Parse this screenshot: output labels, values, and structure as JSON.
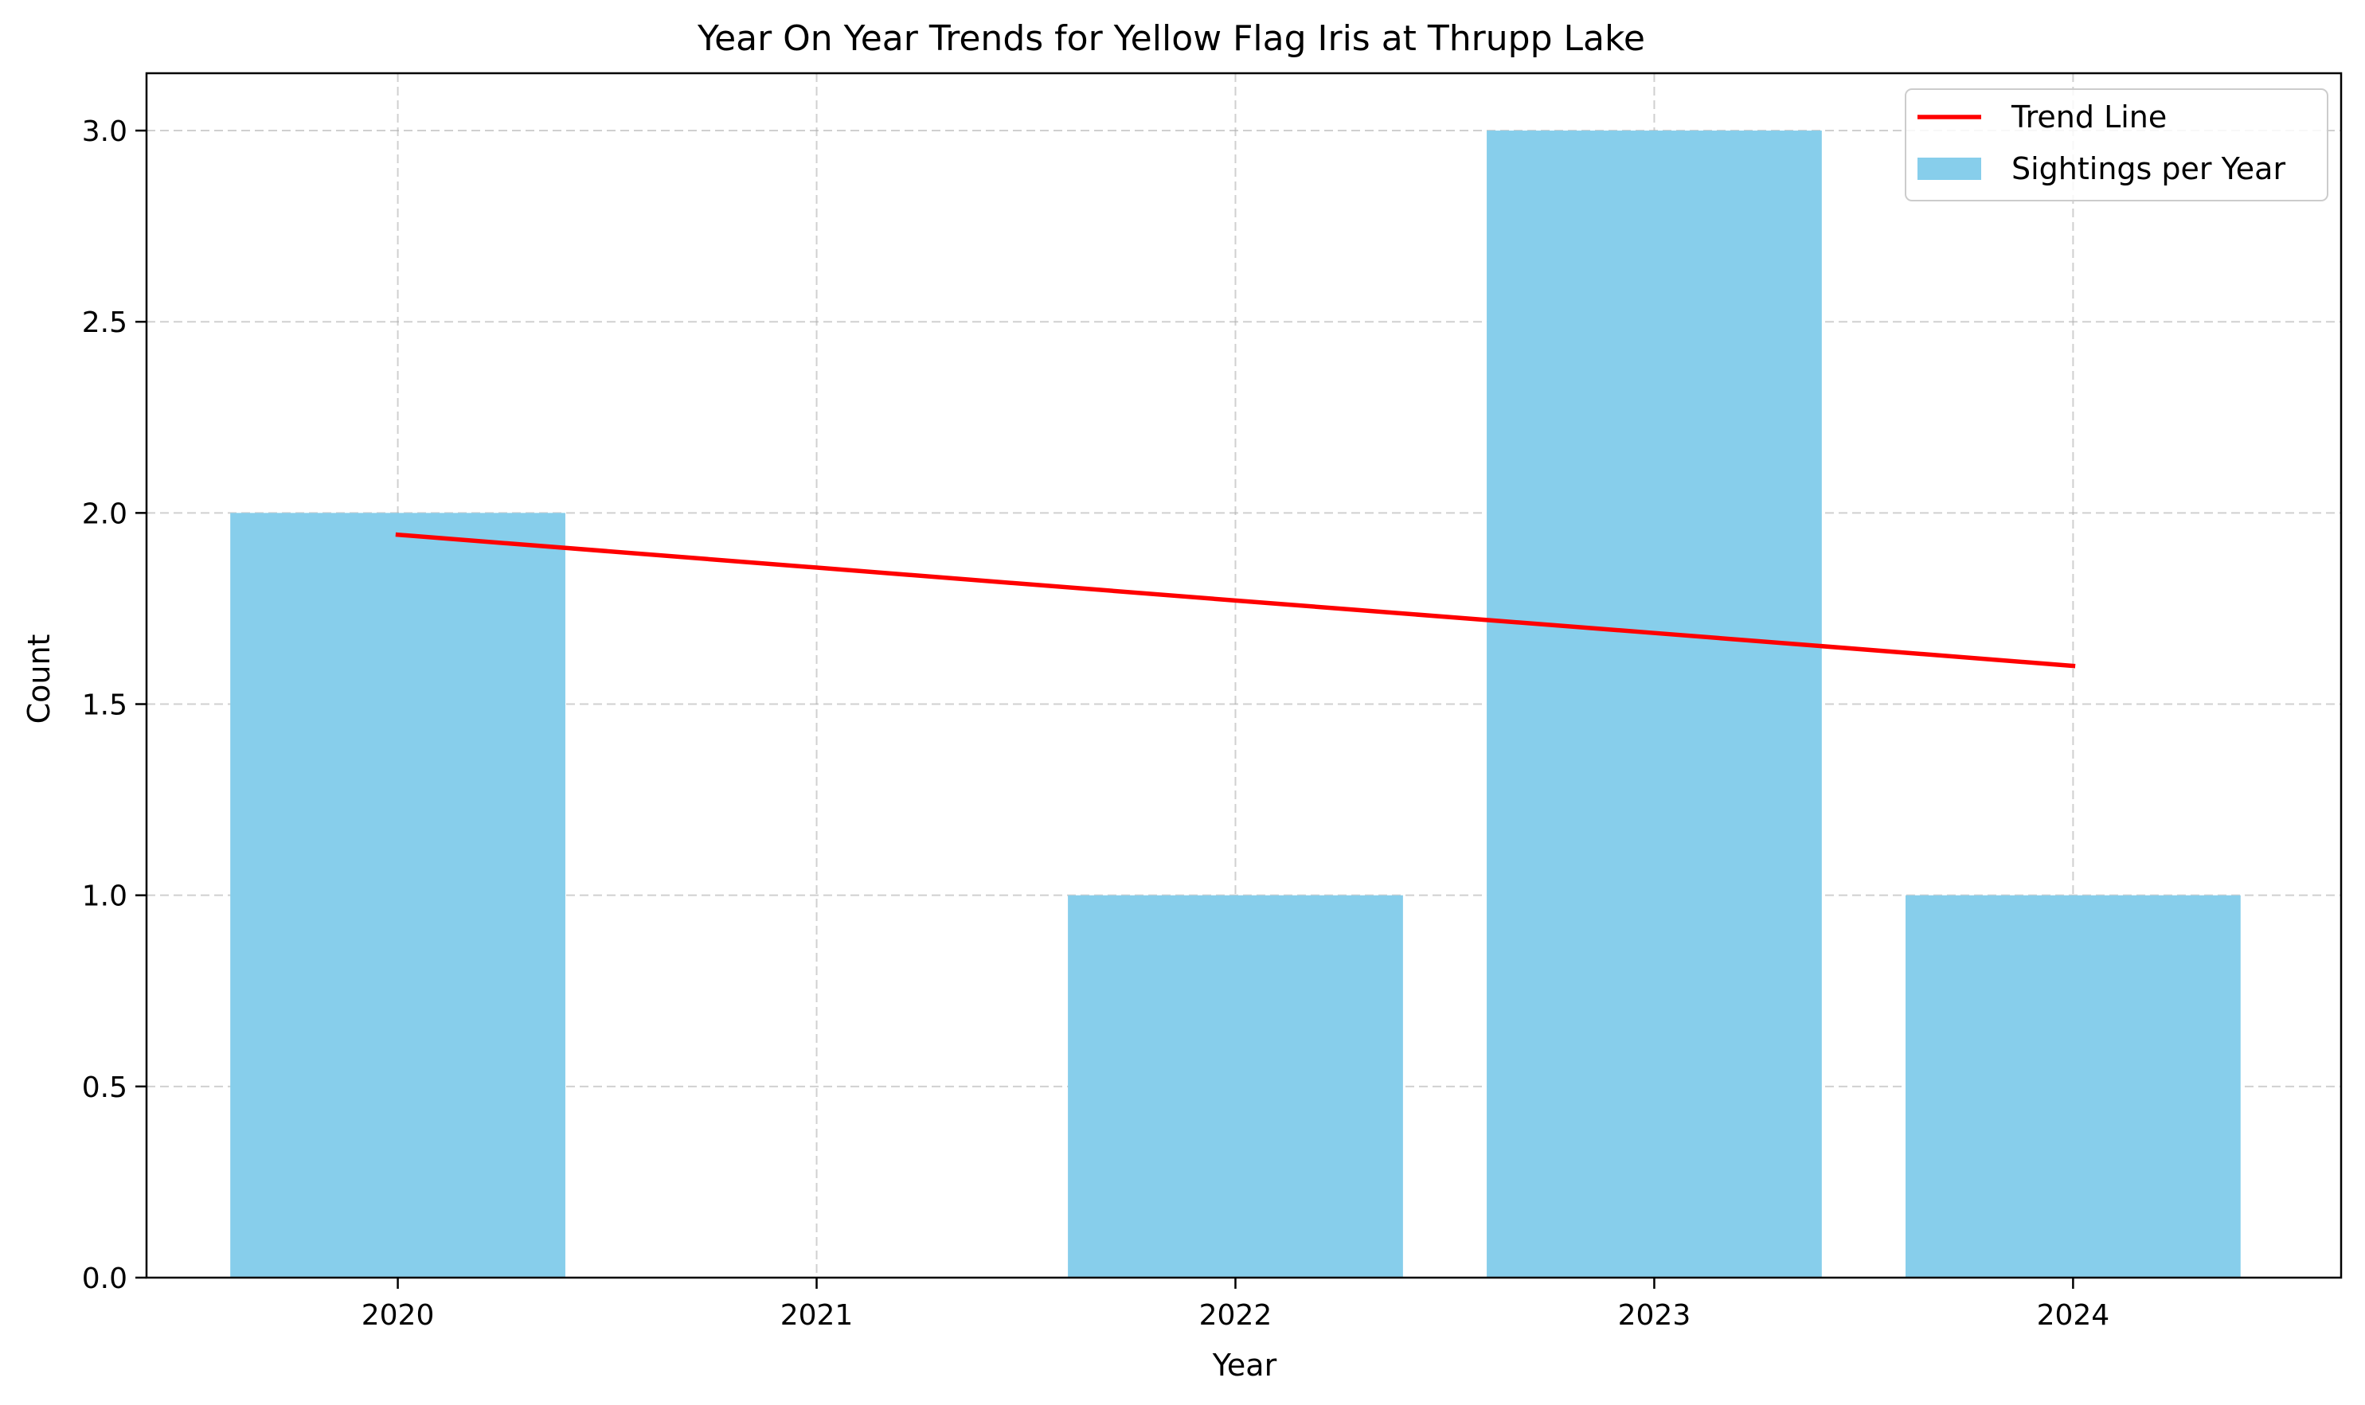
{
  "chart_data": {
    "type": "bar",
    "title": "Year On Year Trends for Yellow Flag Iris at Thrupp Lake",
    "xlabel": "Year",
    "ylabel": "Count",
    "categories": [
      "2020",
      "2021",
      "2022",
      "2023",
      "2024"
    ],
    "x": [
      2020,
      2021,
      2022,
      2023,
      2024
    ],
    "xlim": [
      2019.4,
      2024.64
    ],
    "ylim": [
      0,
      3.15
    ],
    "yticks": [
      0,
      0.5,
      1,
      1.5,
      2,
      2.5,
      3
    ],
    "ytick_labels": [
      "0.0",
      "0.5",
      "1.0",
      "1.5",
      "2.0",
      "2.5",
      "3.0"
    ],
    "series": [
      {
        "name": "Sightings per Year",
        "kind": "bar",
        "color": "#87CEEB",
        "values": [
          2,
          0,
          1,
          3,
          1
        ]
      },
      {
        "name": "Trend Line",
        "kind": "line",
        "color": "#FF0000",
        "values": [
          1.943,
          1.857,
          1.771,
          1.686,
          1.6
        ]
      }
    ],
    "grid": true,
    "legend_position": "top-right"
  }
}
